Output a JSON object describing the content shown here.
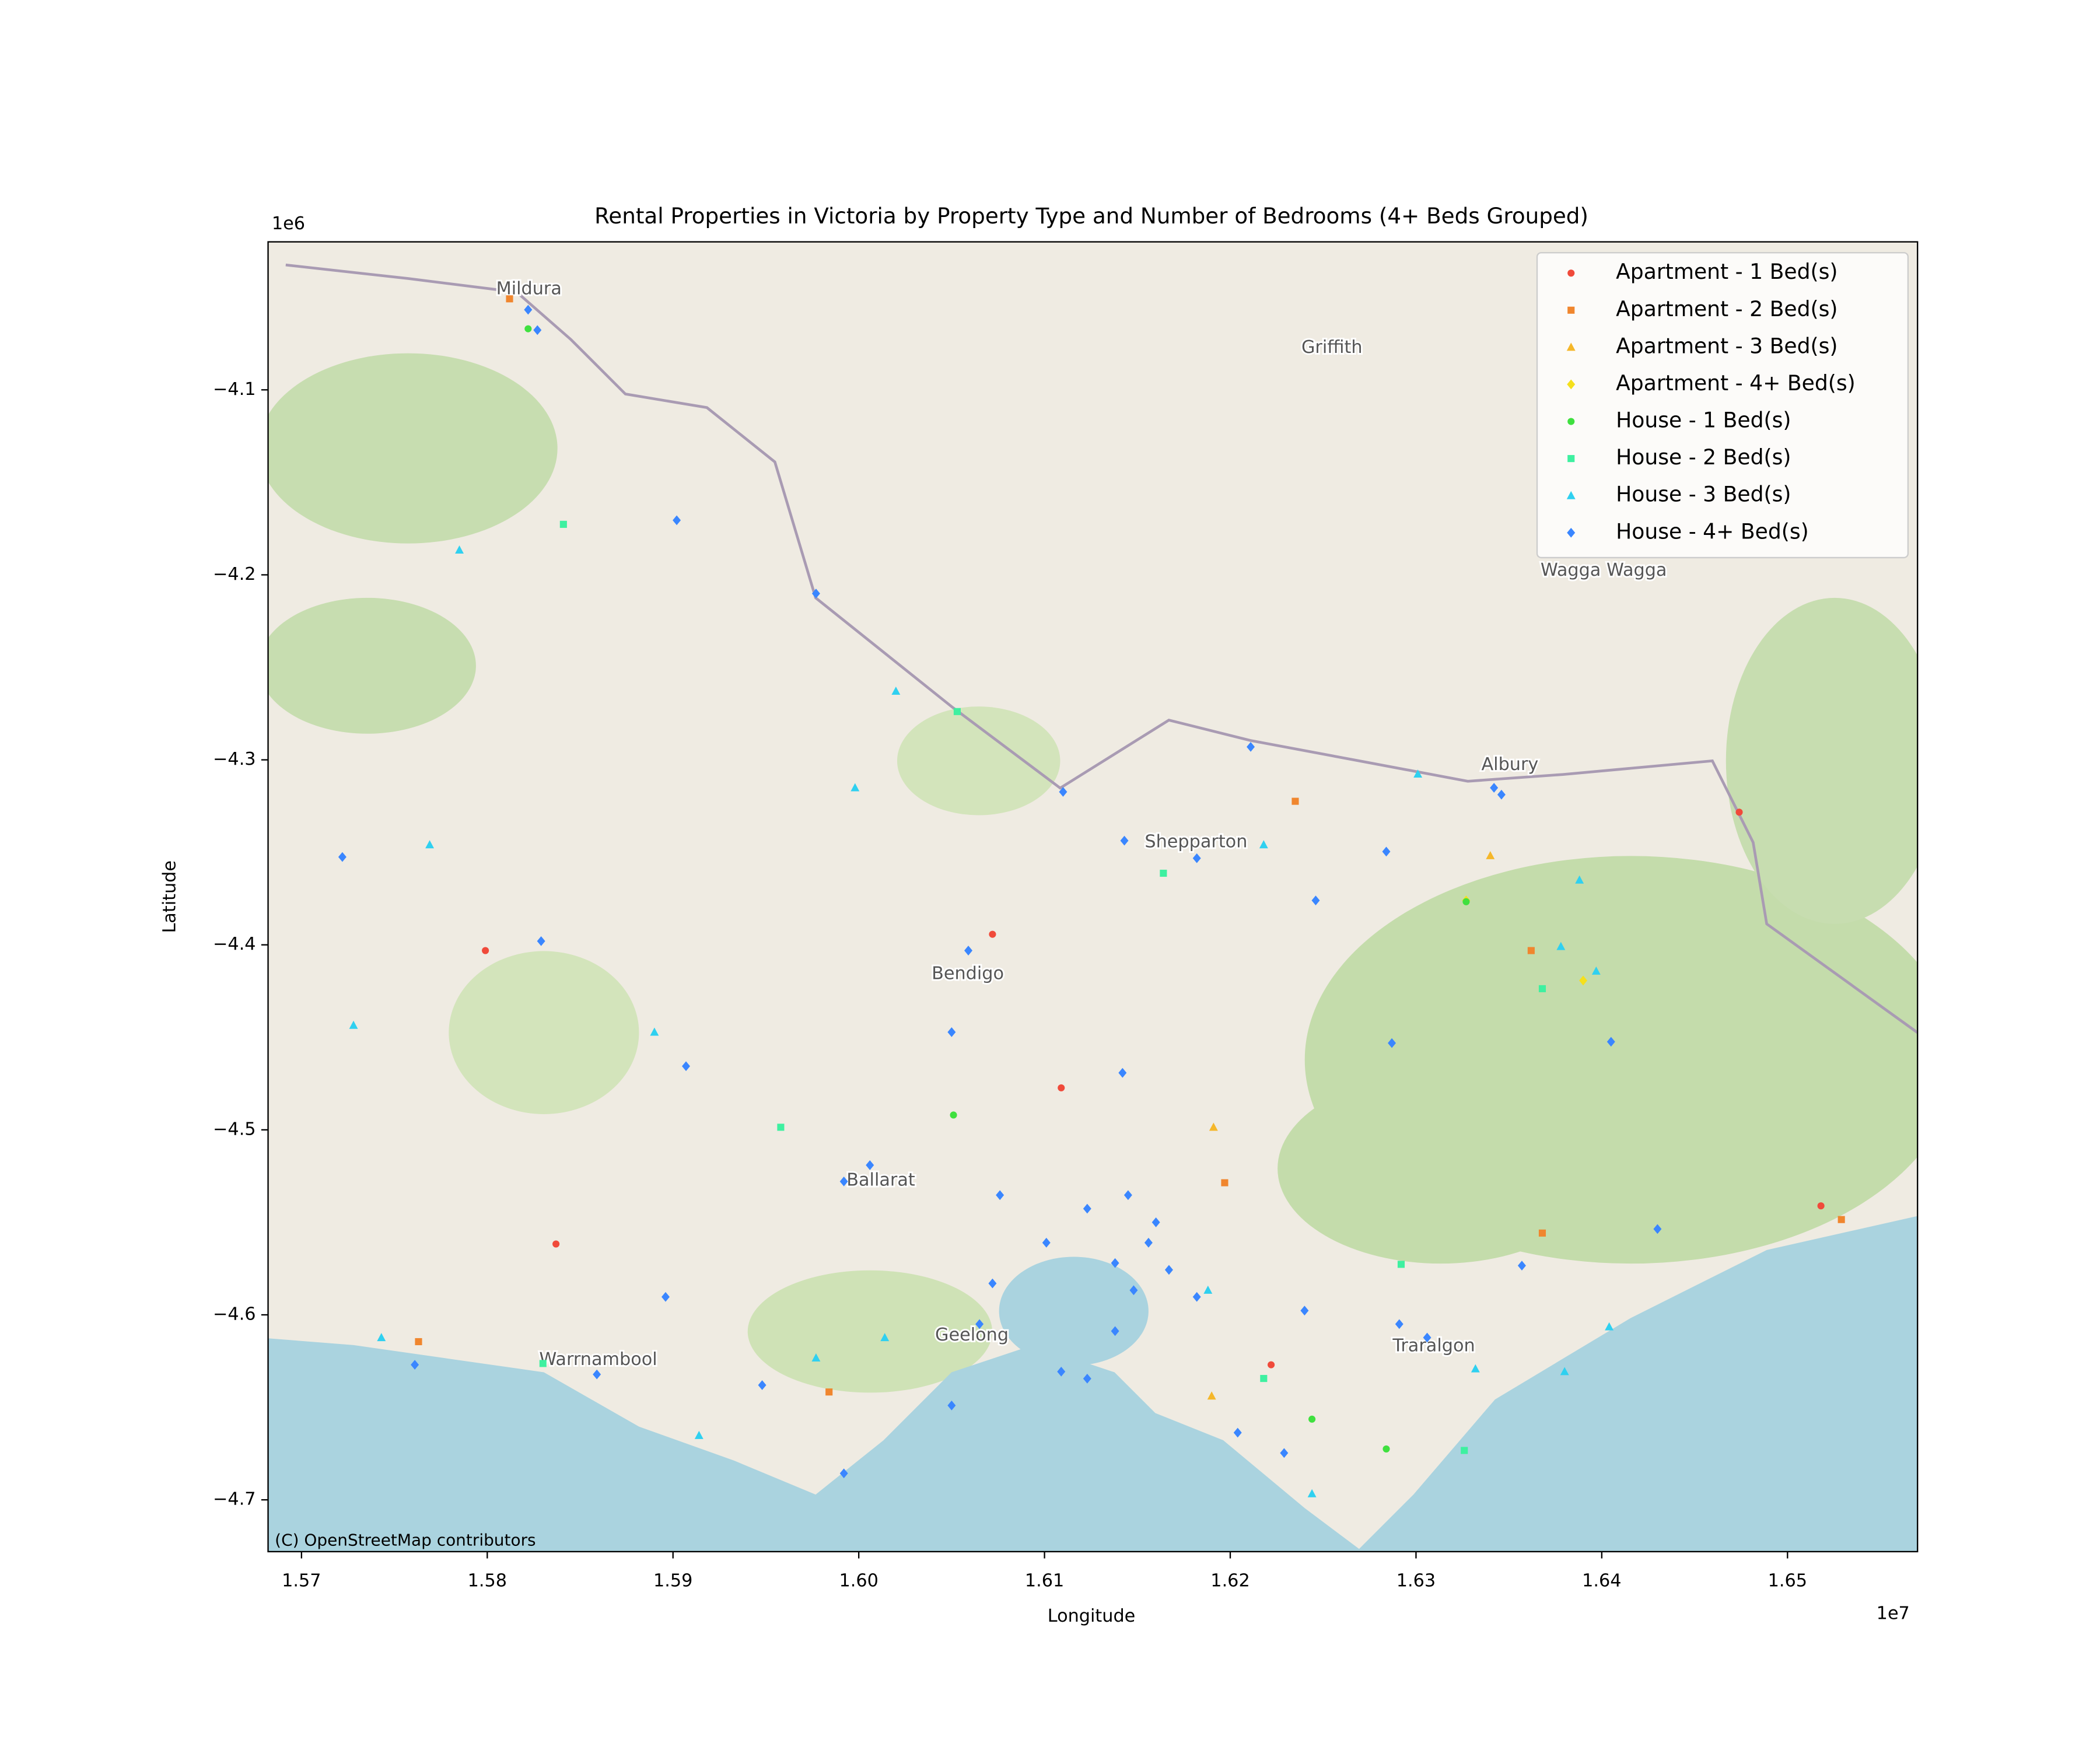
{
  "chart_data": {
    "type": "scatter",
    "title": "Rental Properties in Victoria by Property Type and Number of Bedrooms (4+ Beds Grouped)",
    "x_label": "Longitude",
    "y_label": "Latitude",
    "x_offset_label": "1e7",
    "y_offset_label": "1e6",
    "attribution": "(C) OpenStreetMap contributors",
    "map_labels": [
      "Mildura",
      "Griffith",
      "Wagga Wagga",
      "Albury",
      "Shepparton",
      "Bendigo",
      "Ballarat",
      "Geelong",
      "Warrnambool",
      "Traralgon"
    ],
    "xlim": [
      1.5682,
      1.657
    ],
    "ylim": [
      -4.728,
      -4.02
    ],
    "xticks": [
      1.57,
      1.58,
      1.59,
      {
        "value": 1.6,
        "label": "1.60"
      },
      1.61,
      1.62,
      1.63,
      1.64,
      1.65
    ],
    "yticks": [
      {
        "value": -4.7,
        "label": "−4.7"
      },
      {
        "value": -4.6,
        "label": "−4.6"
      },
      {
        "value": -4.5,
        "label": "−4.5"
      },
      {
        "value": -4.4,
        "label": "−4.4"
      },
      {
        "value": -4.3,
        "label": "−4.3"
      },
      {
        "value": -4.2,
        "label": "−4.2"
      },
      {
        "value": -4.1,
        "label": "−4.1"
      }
    ],
    "legend": "upper right",
    "series": [
      {
        "name": "Apartment - 1 Bed(s)",
        "color": "#f04a3a",
        "marker": "o",
        "x": [
          1.5799,
          1.5837,
          1.6109,
          1.6474,
          1.6518,
          1.6222,
          1.6072
        ],
        "values": [
          -4.4031,
          -4.5617,
          -4.4773,
          -4.3283,
          -4.5411,
          -4.627,
          -4.3943
        ]
      },
      {
        "name": "Apartment - 2 Bed(s)",
        "color": "#f0862e",
        "marker": "s",
        "x": [
          1.5812,
          1.6235,
          1.6368,
          1.6529,
          1.5984,
          1.5763,
          1.6197,
          1.6362
        ],
        "values": [
          -4.0508,
          -4.3224,
          -4.5558,
          -4.5485,
          -4.6417,
          -4.6145,
          -4.5286,
          -4.4031
        ]
      },
      {
        "name": "Apartment - 3 Bed(s)",
        "color": "#f5b72a",
        "marker": "^",
        "x": [
          1.6191,
          1.619,
          1.634
        ],
        "values": [
          -4.4986,
          -4.6439,
          -4.3518
        ]
      },
      {
        "name": "Apartment - 4+ Bed(s)",
        "color": "#f5e01d",
        "marker": "D",
        "x": [
          1.639,
          1.6327
        ],
        "values": [
          -4.4193,
          -4.376
        ]
      },
      {
        "name": "House - 1 Bed(s)",
        "color": "#3fe03f",
        "marker": "o",
        "x": [
          1.5822,
          1.6327,
          1.6051,
          1.6244,
          1.6284
        ],
        "values": [
          -4.067,
          -4.3767,
          -4.492,
          -4.6564,
          -4.6725
        ]
      },
      {
        "name": "House - 2 Bed(s)",
        "color": "#3ef0a0",
        "marker": "s",
        "x": [
          1.5841,
          1.6053,
          1.583,
          1.6368,
          1.6292,
          1.6326,
          1.6218,
          1.6164,
          1.5958
        ],
        "values": [
          -4.1727,
          -4.2739,
          -4.6263,
          -4.4237,
          -4.5727,
          -4.6733,
          -4.6344,
          -4.3613,
          -4.4986
        ]
      },
      {
        "name": "House - 3 Bed(s)",
        "color": "#2fd0f0",
        "marker": "^",
        "x": [
          1.5785,
          1.5769,
          1.5728,
          1.602,
          1.5998,
          1.6301,
          1.6388,
          1.6378,
          1.6397,
          1.6218,
          1.6332,
          1.638,
          1.6404,
          1.6244,
          1.5977,
          1.5914,
          1.589,
          1.5743,
          1.6188,
          1.6014
        ],
        "values": [
          -4.1866,
          -4.3459,
          -4.4435,
          -4.2629,
          -4.3151,
          -4.3077,
          -4.365,
          -4.4009,
          -4.4142,
          -4.3459,
          -4.6292,
          -4.6307,
          -4.6065,
          -4.6967,
          -4.6233,
          -4.6652,
          -4.4472,
          -4.6123,
          -4.5867,
          -4.6123
        ]
      },
      {
        "name": "House - 4+ Bed(s)",
        "color": "#3a86ff",
        "marker": "D",
        "x": [
          1.5822,
          1.5827,
          1.5902,
          1.5977,
          1.611,
          1.6182,
          1.6143,
          1.6059,
          1.605,
          1.6006,
          1.5992,
          1.6065,
          1.6072,
          1.6101,
          1.6123,
          1.6145,
          1.6156,
          1.6167,
          1.6182,
          1.616,
          1.6138,
          1.6148,
          1.6109,
          1.6123,
          1.6138,
          1.624,
          1.6291,
          1.6306,
          1.6346,
          1.6342,
          1.6211,
          1.6246,
          1.6284,
          1.6405,
          1.643,
          1.6357,
          1.6204,
          1.6229,
          1.605,
          1.5992,
          1.5859,
          1.5761,
          1.5829,
          1.5722,
          1.5896,
          1.5907,
          1.6076,
          1.6142,
          1.6287,
          1.5948
        ],
        "values": [
          -4.0567,
          -4.0677,
          -4.1705,
          -4.2101,
          -4.3173,
          -4.3532,
          -4.3437,
          -4.4031,
          -4.4472,
          -4.5191,
          -4.5279,
          -4.605,
          -4.583,
          -4.561,
          -4.5426,
          -4.5353,
          -4.561,
          -4.5757,
          -4.5903,
          -4.55,
          -4.572,
          -4.5867,
          -4.6307,
          -4.6345,
          -4.6088,
          -4.5977,
          -4.605,
          -4.6123,
          -4.3188,
          -4.3151,
          -4.293,
          -4.376,
          -4.3496,
          -4.4524,
          -4.5536,
          -4.5734,
          -4.6637,
          -4.6747,
          -4.649,
          -4.6857,
          -4.6322,
          -4.627,
          -4.398,
          -4.3525,
          -4.5903,
          -4.4656,
          -4.5353,
          -4.4692,
          -4.4531,
          -4.638
        ]
      }
    ]
  }
}
